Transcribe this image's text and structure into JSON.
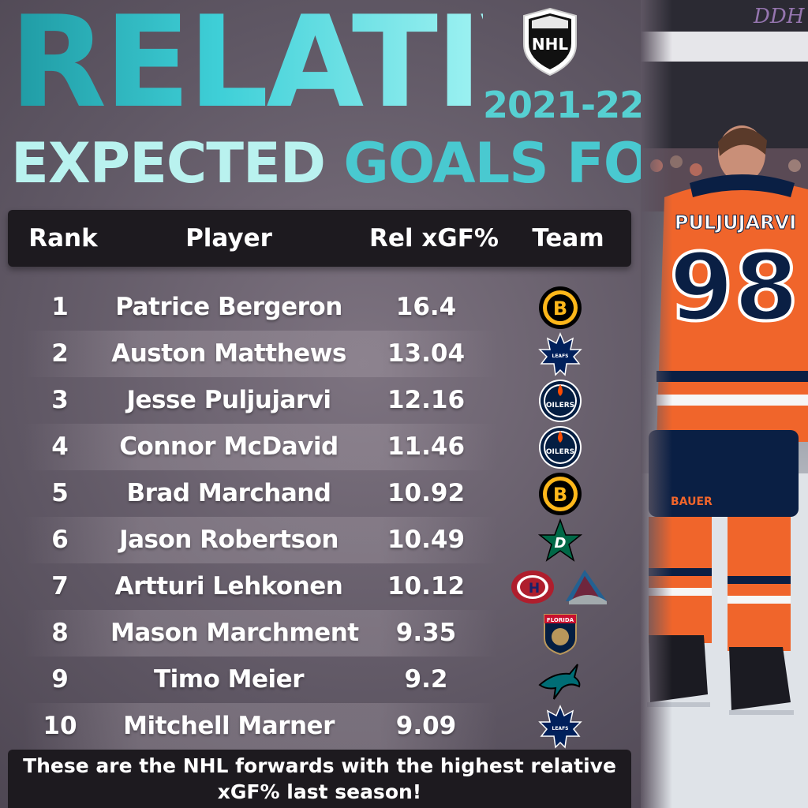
{
  "header": {
    "title_main": "RELATIVE",
    "title_sub_1": "EXPECTED",
    "title_sub_2": "GOALS FOR %",
    "season": "2021-22",
    "logo_text": "NHL"
  },
  "chart_data": {
    "type": "table",
    "columns": [
      "Rank",
      "Player",
      "Rel xGF%",
      "Team"
    ],
    "rows": [
      {
        "rank": "1",
        "player": "Patrice Bergeron",
        "value": "16.4",
        "teams": [
          "bruins"
        ]
      },
      {
        "rank": "2",
        "player": "Auston Matthews",
        "value": "13.04",
        "teams": [
          "maple-leafs"
        ]
      },
      {
        "rank": "3",
        "player": "Jesse Puljujarvi",
        "value": "12.16",
        "teams": [
          "oilers"
        ]
      },
      {
        "rank": "4",
        "player": "Connor McDavid",
        "value": "11.46",
        "teams": [
          "oilers"
        ]
      },
      {
        "rank": "5",
        "player": "Brad Marchand",
        "value": "10.92",
        "teams": [
          "bruins"
        ]
      },
      {
        "rank": "6",
        "player": "Jason Robertson",
        "value": "10.49",
        "teams": [
          "stars"
        ]
      },
      {
        "rank": "7",
        "player": "Artturi Lehkonen",
        "value": "10.12",
        "teams": [
          "canadiens",
          "avalanche"
        ]
      },
      {
        "rank": "8",
        "player": "Mason Marchment",
        "value": "9.35",
        "teams": [
          "panthers"
        ]
      },
      {
        "rank": "9",
        "player": "Timo Meier",
        "value": "9.2",
        "teams": [
          "sharks"
        ]
      },
      {
        "rank": "10",
        "player": "Mitchell Marner",
        "value": "9.09",
        "teams": [
          "maple-leafs"
        ]
      }
    ]
  },
  "team_logos": {
    "bruins": {
      "text": "B",
      "colors": [
        "#fdb71a",
        "#000000"
      ]
    },
    "maple-leafs": {
      "text": "TORONTO MAPLE LEAFS",
      "colors": [
        "#00205b",
        "#ffffff"
      ]
    },
    "oilers": {
      "text": "OILERS",
      "colors": [
        "#041e42",
        "#fc4c02"
      ]
    },
    "stars": {
      "text": "D",
      "colors": [
        "#006847",
        "#8f8f8c"
      ]
    },
    "canadiens": {
      "text": "H",
      "colors": [
        "#af1e2d",
        "#192168"
      ]
    },
    "avalanche": {
      "text": "A",
      "colors": [
        "#6f263d",
        "#236192"
      ]
    },
    "panthers": {
      "text": "FLORIDA",
      "colors": [
        "#041e42",
        "#c8102e"
      ]
    },
    "sharks": {
      "text": "",
      "colors": [
        "#006d75",
        "#000000"
      ]
    }
  },
  "photo": {
    "jersey_name": "PULJUJARVI",
    "jersey_number": "98",
    "brand": "BAUER"
  },
  "footer": {
    "text": "These are the NHL forwards with the highest relative xGF% last season!"
  },
  "watermark": "DDH"
}
